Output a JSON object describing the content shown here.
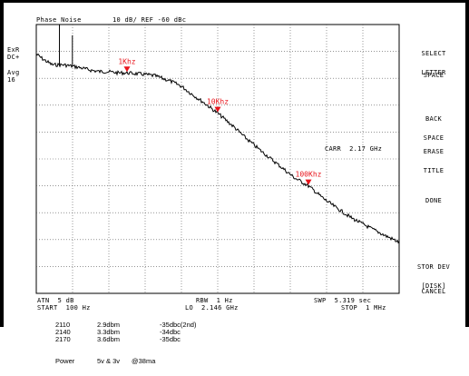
{
  "header": {
    "mode": "Phase Noise",
    "scale": "10 dB/ REF -60 dBc"
  },
  "left_annotations": {
    "exr": "ExR",
    "dc": "DC+",
    "avg": "Avg",
    "avg_count": "16"
  },
  "carrier_label": "CARR  2.17 GHz",
  "footer": {
    "atn": "ATN  5 dB",
    "start": "START  100 Hz",
    "rbw": "RBW  1 Hz",
    "lo": "LO  2.146 GHz",
    "swp": "SWP  5.319 sec",
    "stop": "STOP  1 MHz"
  },
  "softkeys": {
    "select_letter": [
      "SELECT",
      "LETTER"
    ],
    "space": "SPACE",
    "back_space": [
      "BACK",
      "SPACE"
    ],
    "erase_title": [
      "ERASE",
      "TITLE"
    ],
    "done": "DONE",
    "stor_dev": [
      "STOR DEV",
      "[DISK]"
    ],
    "cancel": "CANCEL"
  },
  "table": {
    "rows": [
      {
        "freq": "2110",
        "power": "2.9dbm",
        "spur": "-35dbc(2nd)"
      },
      {
        "freq": "2140",
        "power": "3.3dbm",
        "spur": "-34dbc"
      },
      {
        "freq": "2170",
        "power": "3.6dbm",
        "spur": "-35dbc"
      }
    ]
  },
  "power_line": {
    "label": "Power",
    "voltage": "5v & 3v",
    "current": "@38ma"
  },
  "colors": {
    "trace": "#000000",
    "grid": "#555555",
    "marker": "#e8141b"
  },
  "chart_data": {
    "type": "line",
    "title": "Phase Noise",
    "xlabel": "",
    "ylabel": "",
    "x_scale": "log",
    "xlim_hz": [
      100,
      1000000
    ],
    "ylim_db_divisions": [
      0,
      10
    ],
    "reference": "-60 dBc",
    "scale": "10 dB/div",
    "grid": true,
    "markers": [
      {
        "label": "1Khz",
        "x_hz": 1000,
        "y_div_from_top": 1.8
      },
      {
        "label": "10Khz",
        "x_hz": 10000,
        "y_div_from_top": 3.3
      },
      {
        "label": "100Khz",
        "x_hz": 100000,
        "y_div_from_top": 6.0
      }
    ],
    "series": [
      {
        "x_hz": [
          100,
          120,
          150,
          200,
          250,
          300,
          400,
          500,
          600,
          800,
          1000,
          1500,
          2000,
          3000,
          4000,
          5000,
          7000,
          10000,
          15000,
          20000,
          30000,
          50000,
          70000,
          100000,
          150000,
          200000,
          300000,
          500000,
          700000,
          1000000
        ],
        "y_div_from_top": [
          1.1,
          1.3,
          1.5,
          1.5,
          1.55,
          1.6,
          1.7,
          1.75,
          1.75,
          1.8,
          1.8,
          1.85,
          1.9,
          2.1,
          2.3,
          2.55,
          2.9,
          3.3,
          3.8,
          4.2,
          4.7,
          5.3,
          5.7,
          6.0,
          6.5,
          6.8,
          7.2,
          7.6,
          7.85,
          8.1
        ]
      }
    ],
    "spurs": [
      {
        "x_hz": 180,
        "peak_div_from_top": 0.0
      },
      {
        "x_hz": 250,
        "peak_div_from_top": 0.4
      }
    ]
  }
}
